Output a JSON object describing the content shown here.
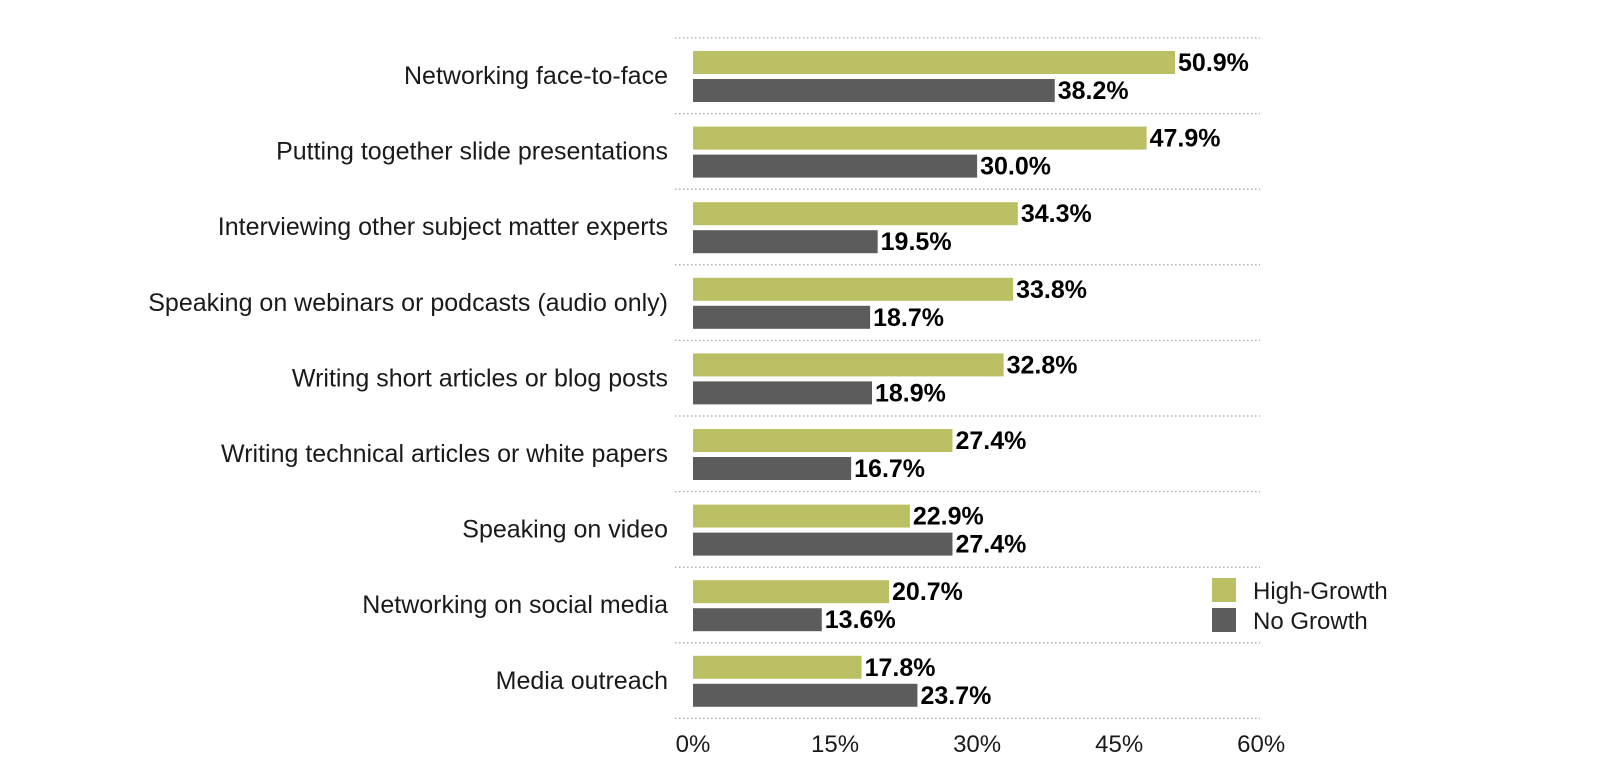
{
  "chart_data": {
    "type": "bar",
    "orientation": "horizontal",
    "categories": [
      "Networking face-to-face",
      "Putting together slide presentations",
      "Interviewing other subject matter experts",
      "Speaking on webinars or podcasts (audio only)",
      "Writing short articles or blog posts",
      "Writing technical articles or white papers",
      "Speaking on video",
      "Networking on social media",
      "Media outreach"
    ],
    "series": [
      {
        "name": "High-Growth",
        "color": "#bcc064",
        "values": [
          50.9,
          47.9,
          34.3,
          33.8,
          32.8,
          27.4,
          22.9,
          20.7,
          17.8
        ],
        "labels": [
          "50.9%",
          "47.9%",
          "34.3%",
          "33.8%",
          "32.8%",
          "27.4%",
          "22.9%",
          "20.7%",
          "17.8%"
        ]
      },
      {
        "name": "No Growth",
        "color": "#5c5c5c",
        "values": [
          38.2,
          30.0,
          19.5,
          18.7,
          18.9,
          16.7,
          27.4,
          13.6,
          23.7
        ],
        "labels": [
          "38.2%",
          "30.0%",
          "19.5%",
          "18.7%",
          "18.9%",
          "16.7%",
          "27.4%",
          "13.6%",
          "23.7%"
        ]
      }
    ],
    "xlim": [
      0,
      60
    ],
    "xticks": [
      0,
      15,
      30,
      45,
      60
    ],
    "xtick_labels": [
      "0%",
      "15%",
      "30%",
      "45%",
      "60%"
    ],
    "grid": "dotted horizontal separators between categories",
    "legend_position": "bottom-right"
  }
}
